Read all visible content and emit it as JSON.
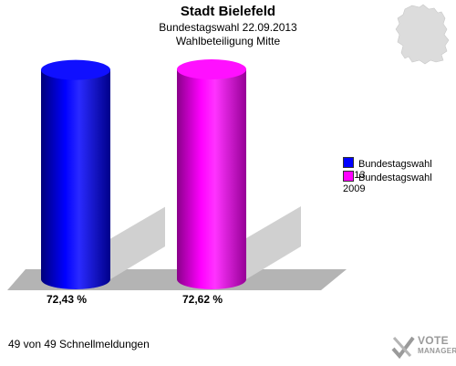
{
  "header": {
    "title": "Stadt Bielefeld",
    "subtitle1": "Bundestagswahl 22.09.2013",
    "subtitle2": "Wahlbeteiligung Mitte"
  },
  "chart_data": {
    "type": "bar",
    "title": "Stadt Bielefeld",
    "subtitle": "Bundestagswahl 22.09.2013 – Wahlbeteiligung Mitte",
    "categories": [
      "Bundestagswahl 2013",
      "Bundestagswahl 2009"
    ],
    "values": [
      72.43,
      72.62
    ],
    "value_labels": [
      "72,43 %",
      "72,62 %"
    ],
    "colors": [
      "#0000ff",
      "#ff00ff"
    ],
    "ylim": [
      0,
      72.62
    ],
    "grid": false,
    "legend_position": "right",
    "style": "3d-cylinder"
  },
  "legend": {
    "items": [
      {
        "label": "Bundestagswahl 2013",
        "color": "#0000ff"
      },
      {
        "label": "Bundestagswahl 2009",
        "color": "#ff00ff"
      }
    ]
  },
  "footer": {
    "text": "49 von 49 Schnellmeldungen"
  },
  "brand": {
    "line1": "VOTE",
    "line2": "MANAGER"
  }
}
